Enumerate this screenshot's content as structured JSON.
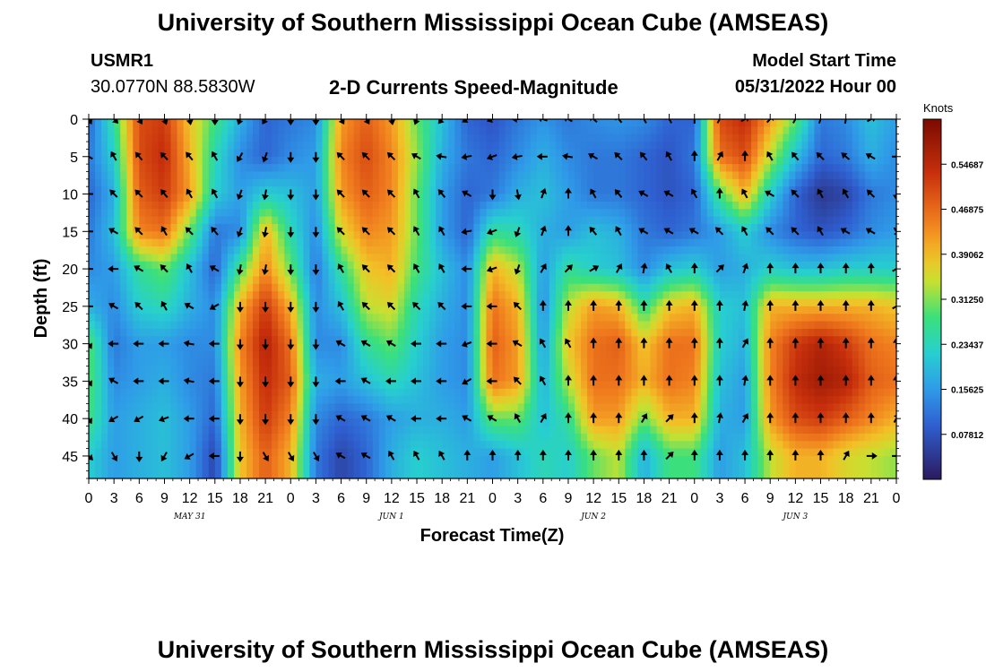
{
  "header": {
    "title": "University of Southern Mississippi Ocean Cube (AMSEAS)",
    "station_id": "USMR1",
    "station_coords": "30.0770N  88.5830W",
    "subtitle": "2-D Currents Speed-Magnitude",
    "model_start_label": "Model Start Time",
    "model_start_value": "05/31/2022 Hour 00"
  },
  "footer": {
    "title": "University of Southern Mississippi Ocean Cube (AMSEAS)"
  },
  "colors": {
    "low": "#2b1a5e",
    "mid": "#2ecc71",
    "high": "#7a0a00"
  },
  "chart_data": {
    "type": "heatmap",
    "title": "2-D Currents Speed-Magnitude",
    "xlabel": "Forecast Time(Z)",
    "ylabel": "Depth (ft)",
    "x_tick_labels": [
      "0",
      "3",
      "6",
      "9",
      "12",
      "15",
      "18",
      "21",
      "0",
      "3",
      "6",
      "9",
      "12",
      "15",
      "18",
      "21",
      "0",
      "3",
      "6",
      "9",
      "12",
      "15",
      "18",
      "21",
      "0",
      "3",
      "6",
      "9",
      "12",
      "15",
      "18",
      "21",
      "0"
    ],
    "x_range_hours": [
      0,
      96
    ],
    "date_labels": [
      {
        "label": "MAY 31",
        "hour": 12
      },
      {
        "label": "JUN 1",
        "hour": 36
      },
      {
        "label": "JUN 2",
        "hour": 60
      },
      {
        "label": "JUN 3",
        "hour": 84
      }
    ],
    "y_ticks": [
      0,
      5,
      10,
      15,
      20,
      25,
      30,
      35,
      40,
      45
    ],
    "ylim": [
      0,
      48
    ],
    "colorbar": {
      "units": "Knots",
      "ticks": [
        "0.07812",
        "0.15625",
        "0.23437",
        "0.31250",
        "0.39062",
        "0.46875",
        "0.54687"
      ],
      "range": [
        0,
        0.625
      ]
    },
    "depth_levels_ft": [
      0,
      5,
      10,
      15,
      20,
      25,
      30,
      35,
      40,
      45
    ],
    "time_hours": [
      0,
      3,
      6,
      9,
      12,
      15,
      18,
      21,
      24,
      27,
      30,
      33,
      36,
      39,
      42,
      45,
      48,
      51,
      54,
      57,
      60,
      63,
      66,
      69,
      72,
      75,
      78,
      81,
      84,
      87,
      90,
      93,
      96
    ],
    "speed_knots": [
      [
        0.1,
        0.26,
        0.5,
        0.52,
        0.38,
        0.28,
        0.18,
        0.1,
        0.12,
        0.14,
        0.42,
        0.48,
        0.42,
        0.3,
        0.2,
        0.1,
        0.08,
        0.12,
        0.15,
        0.12,
        0.14,
        0.15,
        0.14,
        0.1,
        0.1,
        0.5,
        0.54,
        0.42,
        0.3,
        0.12,
        0.14,
        0.2,
        0.16
      ],
      [
        0.12,
        0.22,
        0.5,
        0.54,
        0.4,
        0.24,
        0.14,
        0.1,
        0.14,
        0.16,
        0.44,
        0.5,
        0.44,
        0.32,
        0.18,
        0.12,
        0.1,
        0.14,
        0.18,
        0.14,
        0.12,
        0.12,
        0.1,
        0.08,
        0.12,
        0.46,
        0.5,
        0.34,
        0.2,
        0.1,
        0.12,
        0.18,
        0.14
      ],
      [
        0.1,
        0.18,
        0.48,
        0.52,
        0.42,
        0.22,
        0.16,
        0.22,
        0.2,
        0.16,
        0.42,
        0.48,
        0.44,
        0.3,
        0.16,
        0.1,
        0.12,
        0.18,
        0.2,
        0.16,
        0.12,
        0.12,
        0.1,
        0.08,
        0.1,
        0.28,
        0.4,
        0.22,
        0.1,
        0.04,
        0.06,
        0.12,
        0.14
      ],
      [
        0.12,
        0.2,
        0.44,
        0.46,
        0.3,
        0.12,
        0.14,
        0.4,
        0.24,
        0.14,
        0.36,
        0.44,
        0.42,
        0.3,
        0.16,
        0.1,
        0.26,
        0.24,
        0.18,
        0.16,
        0.2,
        0.18,
        0.12,
        0.1,
        0.12,
        0.16,
        0.22,
        0.14,
        0.1,
        0.08,
        0.1,
        0.14,
        0.16
      ],
      [
        0.14,
        0.16,
        0.26,
        0.3,
        0.2,
        0.1,
        0.28,
        0.44,
        0.3,
        0.12,
        0.26,
        0.38,
        0.4,
        0.28,
        0.2,
        0.14,
        0.4,
        0.34,
        0.16,
        0.26,
        0.22,
        0.2,
        0.14,
        0.2,
        0.22,
        0.16,
        0.18,
        0.22,
        0.2,
        0.2,
        0.22,
        0.22,
        0.22
      ],
      [
        0.18,
        0.14,
        0.22,
        0.24,
        0.18,
        0.14,
        0.4,
        0.52,
        0.4,
        0.14,
        0.2,
        0.34,
        0.36,
        0.24,
        0.18,
        0.14,
        0.46,
        0.4,
        0.14,
        0.34,
        0.42,
        0.4,
        0.26,
        0.38,
        0.4,
        0.22,
        0.2,
        0.4,
        0.4,
        0.4,
        0.4,
        0.4,
        0.38
      ],
      [
        0.3,
        0.12,
        0.16,
        0.16,
        0.14,
        0.14,
        0.44,
        0.56,
        0.46,
        0.14,
        0.14,
        0.26,
        0.3,
        0.22,
        0.16,
        0.14,
        0.48,
        0.42,
        0.16,
        0.38,
        0.46,
        0.48,
        0.38,
        0.46,
        0.46,
        0.22,
        0.18,
        0.44,
        0.52,
        0.56,
        0.52,
        0.46,
        0.44
      ],
      [
        0.3,
        0.14,
        0.16,
        0.18,
        0.14,
        0.12,
        0.42,
        0.54,
        0.48,
        0.18,
        0.16,
        0.2,
        0.24,
        0.2,
        0.16,
        0.14,
        0.46,
        0.42,
        0.18,
        0.34,
        0.46,
        0.46,
        0.4,
        0.46,
        0.44,
        0.2,
        0.16,
        0.44,
        0.54,
        0.58,
        0.56,
        0.48,
        0.46
      ],
      [
        0.28,
        0.16,
        0.18,
        0.2,
        0.16,
        0.1,
        0.4,
        0.52,
        0.44,
        0.14,
        0.1,
        0.12,
        0.16,
        0.18,
        0.18,
        0.16,
        0.3,
        0.3,
        0.2,
        0.26,
        0.42,
        0.42,
        0.3,
        0.4,
        0.4,
        0.18,
        0.16,
        0.42,
        0.5,
        0.52,
        0.48,
        0.44,
        0.4
      ],
      [
        0.22,
        0.16,
        0.18,
        0.2,
        0.16,
        0.06,
        0.38,
        0.48,
        0.4,
        0.12,
        0.06,
        0.1,
        0.18,
        0.22,
        0.2,
        0.18,
        0.16,
        0.2,
        0.24,
        0.22,
        0.3,
        0.34,
        0.18,
        0.28,
        0.28,
        0.16,
        0.2,
        0.34,
        0.4,
        0.4,
        0.36,
        0.34,
        0.32
      ]
    ],
    "direction_deg": [
      [
        150,
        135,
        150,
        160,
        170,
        180,
        200,
        210,
        180,
        180,
        150,
        150,
        170,
        200,
        220,
        240,
        250,
        270,
        290,
        300,
        310,
        320,
        330,
        330,
        0,
        30,
        60,
        45,
        30,
        20,
        10,
        60,
        0
      ],
      [
        300,
        330,
        320,
        315,
        320,
        330,
        210,
        200,
        180,
        180,
        315,
        315,
        315,
        300,
        280,
        260,
        250,
        260,
        270,
        280,
        300,
        315,
        320,
        330,
        0,
        30,
        0,
        330,
        320,
        315,
        310,
        300,
        90
      ],
      [
        270,
        315,
        315,
        320,
        330,
        330,
        200,
        190,
        180,
        180,
        315,
        315,
        315,
        330,
        320,
        300,
        180,
        170,
        20,
        0,
        330,
        320,
        300,
        300,
        330,
        0,
        330,
        300,
        315,
        330,
        330,
        315,
        180
      ],
      [
        270,
        300,
        315,
        330,
        315,
        320,
        200,
        190,
        180,
        180,
        315,
        315,
        315,
        330,
        330,
        260,
        250,
        200,
        20,
        0,
        320,
        330,
        300,
        300,
        300,
        315,
        330,
        315,
        315,
        330,
        300,
        300,
        150
      ],
      [
        270,
        270,
        300,
        315,
        330,
        300,
        190,
        190,
        180,
        180,
        330,
        315,
        315,
        330,
        330,
        270,
        250,
        200,
        30,
        45,
        60,
        30,
        10,
        330,
        0,
        45,
        20,
        0,
        0,
        0,
        0,
        0,
        60
      ],
      [
        270,
        300,
        315,
        330,
        300,
        240,
        180,
        180,
        180,
        180,
        330,
        315,
        315,
        315,
        315,
        270,
        270,
        315,
        0,
        0,
        0,
        0,
        0,
        0,
        0,
        0,
        10,
        0,
        0,
        0,
        0,
        0,
        60
      ],
      [
        150,
        270,
        270,
        270,
        280,
        270,
        180,
        180,
        180,
        180,
        300,
        300,
        300,
        270,
        270,
        250,
        270,
        300,
        330,
        330,
        0,
        0,
        0,
        0,
        0,
        0,
        30,
        0,
        0,
        0,
        0,
        0,
        0
      ],
      [
        150,
        300,
        270,
        270,
        280,
        270,
        180,
        180,
        180,
        180,
        270,
        300,
        270,
        270,
        270,
        240,
        270,
        315,
        330,
        0,
        0,
        0,
        0,
        0,
        0,
        0,
        10,
        0,
        0,
        0,
        0,
        0,
        0
      ],
      [
        150,
        240,
        240,
        250,
        270,
        270,
        180,
        180,
        180,
        180,
        300,
        300,
        300,
        270,
        270,
        300,
        300,
        330,
        30,
        0,
        0,
        0,
        30,
        45,
        0,
        10,
        30,
        0,
        0,
        0,
        0,
        0,
        30
      ],
      [
        135,
        150,
        180,
        210,
        240,
        270,
        180,
        150,
        150,
        150,
        300,
        300,
        330,
        330,
        330,
        0,
        0,
        0,
        0,
        0,
        0,
        0,
        0,
        45,
        0,
        0,
        0,
        0,
        0,
        0,
        30,
        90,
        90
      ]
    ]
  }
}
